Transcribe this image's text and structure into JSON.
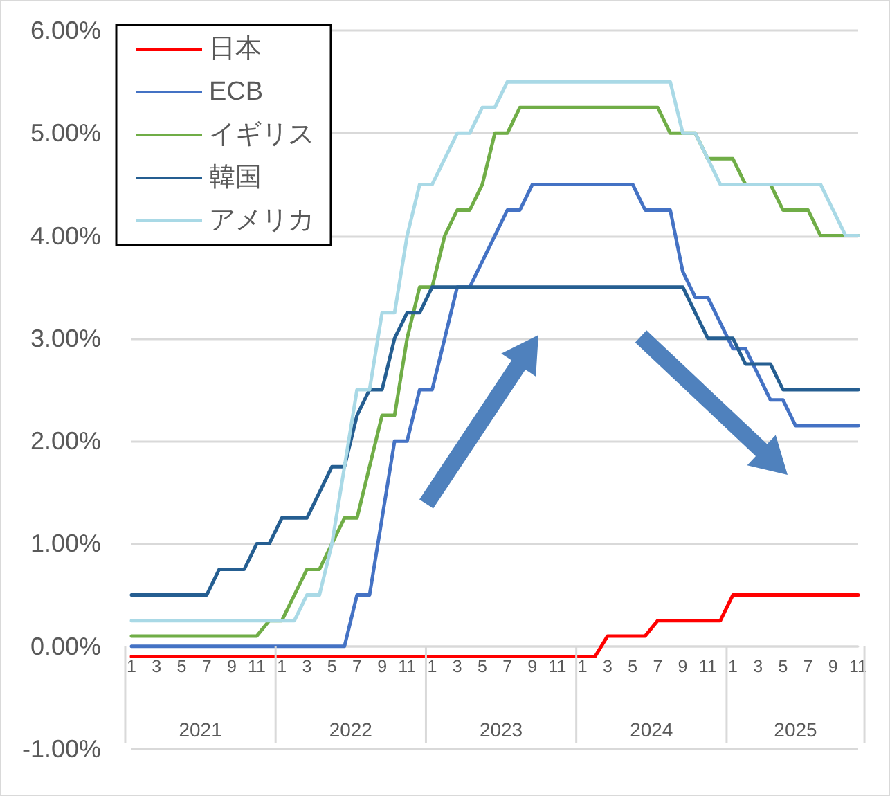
{
  "chart_data": {
    "type": "line",
    "categories": [
      "1",
      null,
      "3",
      null,
      "5",
      null,
      "7",
      null,
      "9",
      null,
      "11",
      null,
      "1",
      null,
      "3",
      null,
      "5",
      null,
      "7",
      null,
      "9",
      null,
      "11",
      null,
      "1",
      null,
      "3",
      null,
      "5",
      null,
      "7",
      null,
      "9",
      null,
      "11",
      null,
      "1",
      null,
      "3",
      null,
      "5",
      null,
      "7",
      null,
      "9",
      null,
      "11",
      null,
      "1",
      null,
      "3",
      null,
      "5",
      null,
      "7",
      null,
      "9",
      null,
      "11"
    ],
    "annotations": [
      "2021",
      "2022",
      "2023",
      "2024",
      "2025"
    ],
    "series": [
      {
        "name": "日本",
        "color": "#ff0000",
        "values": [
          -0.1,
          -0.1,
          -0.1,
          -0.1,
          -0.1,
          -0.1,
          -0.1,
          -0.1,
          -0.1,
          -0.1,
          -0.1,
          -0.1,
          -0.1,
          -0.1,
          -0.1,
          -0.1,
          -0.1,
          -0.1,
          -0.1,
          -0.1,
          -0.1,
          -0.1,
          -0.1,
          -0.1,
          -0.1,
          -0.1,
          -0.1,
          -0.1,
          -0.1,
          -0.1,
          -0.1,
          -0.1,
          -0.1,
          -0.1,
          -0.1,
          -0.1,
          -0.1,
          -0.1,
          0.1,
          0.1,
          0.1,
          0.1,
          0.25,
          0.25,
          0.25,
          0.25,
          0.25,
          0.25,
          0.5,
          0.5,
          0.5,
          0.5,
          0.5,
          0.5,
          0.5,
          0.5,
          0.5,
          0.5,
          0.5
        ]
      },
      {
        "name": "ECB",
        "color": "#4472c4",
        "values": [
          0,
          0,
          0,
          0,
          0,
          0,
          0,
          0,
          0,
          0,
          0,
          0,
          0,
          0,
          0,
          0,
          0,
          0,
          0.5,
          0.5,
          1.25,
          2.0,
          2.0,
          2.5,
          2.5,
          3.0,
          3.5,
          3.5,
          3.75,
          4.0,
          4.25,
          4.25,
          4.5,
          4.5,
          4.5,
          4.5,
          4.5,
          4.5,
          4.5,
          4.5,
          4.5,
          4.25,
          4.25,
          4.25,
          3.65,
          3.4,
          3.4,
          3.15,
          2.9,
          2.9,
          2.65,
          2.4,
          2.4,
          2.15,
          2.15,
          2.15,
          2.15,
          2.15,
          2.15
        ]
      },
      {
        "name": "イギリス",
        "color": "#70ad47",
        "values": [
          0.1,
          0.1,
          0.1,
          0.1,
          0.1,
          0.1,
          0.1,
          0.1,
          0.1,
          0.1,
          0.1,
          0.25,
          0.25,
          0.5,
          0.75,
          0.75,
          1.0,
          1.25,
          1.25,
          1.75,
          2.25,
          2.25,
          3.0,
          3.5,
          3.5,
          4.0,
          4.25,
          4.25,
          4.5,
          5.0,
          5.0,
          5.25,
          5.25,
          5.25,
          5.25,
          5.25,
          5.25,
          5.25,
          5.25,
          5.25,
          5.25,
          5.25,
          5.25,
          5.0,
          5.0,
          5.0,
          4.75,
          4.75,
          4.75,
          4.5,
          4.5,
          4.5,
          4.25,
          4.25,
          4.25,
          4.0,
          4.0,
          4.0,
          4.0
        ]
      },
      {
        "name": "韓国",
        "color": "#255e91",
        "values": [
          0.5,
          0.5,
          0.5,
          0.5,
          0.5,
          0.5,
          0.5,
          0.75,
          0.75,
          0.75,
          1.0,
          1.0,
          1.25,
          1.25,
          1.25,
          1.5,
          1.75,
          1.75,
          2.25,
          2.5,
          2.5,
          3.0,
          3.25,
          3.25,
          3.5,
          3.5,
          3.5,
          3.5,
          3.5,
          3.5,
          3.5,
          3.5,
          3.5,
          3.5,
          3.5,
          3.5,
          3.5,
          3.5,
          3.5,
          3.5,
          3.5,
          3.5,
          3.5,
          3.5,
          3.5,
          3.25,
          3.0,
          3.0,
          3.0,
          2.75,
          2.75,
          2.75,
          2.5,
          2.5,
          2.5,
          2.5,
          2.5,
          2.5,
          2.5
        ]
      },
      {
        "name": "アメリカ",
        "color": "#a9d9e6",
        "values": [
          0.25,
          0.25,
          0.25,
          0.25,
          0.25,
          0.25,
          0.25,
          0.25,
          0.25,
          0.25,
          0.25,
          0.25,
          0.25,
          0.25,
          0.5,
          0.5,
          1.0,
          1.75,
          2.5,
          2.5,
          3.25,
          3.25,
          4.0,
          4.5,
          4.5,
          4.75,
          5.0,
          5.0,
          5.25,
          5.25,
          5.5,
          5.5,
          5.5,
          5.5,
          5.5,
          5.5,
          5.5,
          5.5,
          5.5,
          5.5,
          5.5,
          5.5,
          5.5,
          5.5,
          5.0,
          5.0,
          4.75,
          4.5,
          4.5,
          4.5,
          4.5,
          4.5,
          4.5,
          4.5,
          4.5,
          4.5,
          4.25,
          4.0,
          4.0
        ]
      }
    ],
    "ylim": [
      -1,
      6
    ],
    "yticks": [
      {
        "value": -1,
        "label": "-1.00%"
      },
      {
        "value": 0,
        "label": "0.00%"
      },
      {
        "value": 1,
        "label": "1.00%"
      },
      {
        "value": 2,
        "label": "2.00%"
      },
      {
        "value": 3,
        "label": "3.00%"
      },
      {
        "value": 4,
        "label": "4.00%"
      },
      {
        "value": 5,
        "label": "5.00%"
      },
      {
        "value": 6,
        "label": "6.00%"
      }
    ],
    "grid": "y",
    "legend": "top left",
    "marker": "none",
    "line_style": "solid"
  }
}
